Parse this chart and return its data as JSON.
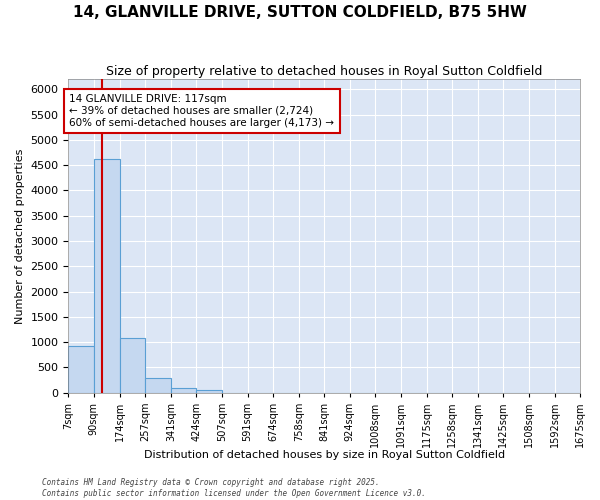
{
  "title": "14, GLANVILLE DRIVE, SUTTON COLDFIELD, B75 5HW",
  "subtitle": "Size of property relative to detached houses in Royal Sutton Coldfield",
  "xlabel": "Distribution of detached houses by size in Royal Sutton Coldfield",
  "ylabel": "Number of detached properties",
  "bar_color": "#c5d8f0",
  "bar_edge_color": "#5a9fd4",
  "background_color": "#dce6f5",
  "grid_color": "#ffffff",
  "fig_bg_color": "#ffffff",
  "annotation_text": "14 GLANVILLE DRIVE: 117sqm\n← 39% of detached houses are smaller (2,724)\n60% of semi-detached houses are larger (4,173) →",
  "annotation_box_color": "#ffffff",
  "annotation_edge_color": "#cc0000",
  "vline_x": 117,
  "vline_color": "#cc0000",
  "bins": [
    7,
    90,
    174,
    257,
    341,
    424,
    507,
    591,
    674,
    758,
    841,
    924,
    1008,
    1091,
    1175,
    1258,
    1341,
    1425,
    1508,
    1592,
    1675
  ],
  "bin_labels": [
    "7sqm",
    "90sqm",
    "174sqm",
    "257sqm",
    "341sqm",
    "424sqm",
    "507sqm",
    "591sqm",
    "674sqm",
    "758sqm",
    "841sqm",
    "924sqm",
    "1008sqm",
    "1091sqm",
    "1175sqm",
    "1258sqm",
    "1341sqm",
    "1425sqm",
    "1508sqm",
    "1592sqm",
    "1675sqm"
  ],
  "counts": [
    920,
    4620,
    1080,
    295,
    95,
    55,
    0,
    0,
    0,
    0,
    0,
    0,
    0,
    0,
    0,
    0,
    0,
    0,
    0,
    0
  ],
  "ylim": [
    0,
    6200
  ],
  "yticks": [
    0,
    500,
    1000,
    1500,
    2000,
    2500,
    3000,
    3500,
    4000,
    4500,
    5000,
    5500,
    6000
  ],
  "footer": "Contains HM Land Registry data © Crown copyright and database right 2025.\nContains public sector information licensed under the Open Government Licence v3.0.",
  "title_fontsize": 11,
  "subtitle_fontsize": 9,
  "ylabel_fontsize": 8,
  "xlabel_fontsize": 8,
  "tick_fontsize": 8,
  "xtick_fontsize": 7
}
